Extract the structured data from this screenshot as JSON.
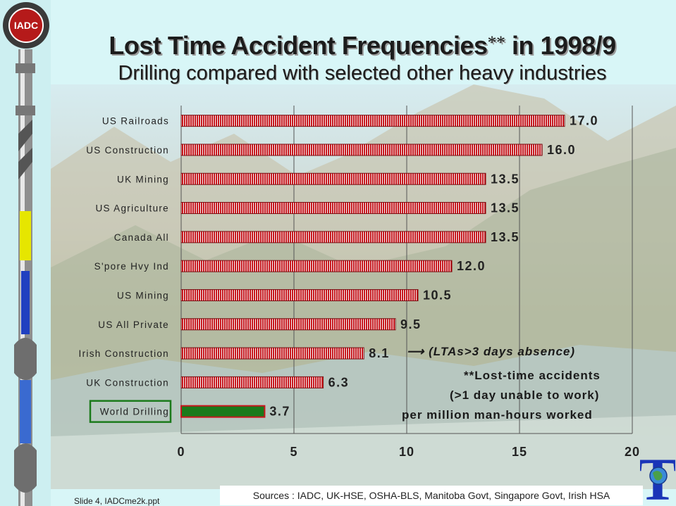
{
  "slide": {
    "title": "Lost Time Accident Frequencies",
    "title_stars": "**",
    "title_suffix": " in 1998/9",
    "subtitle": "Drilling compared with selected other heavy industries",
    "logo_text": "IADC",
    "footer_left": "Slide 4, IADCme2k.ppt",
    "sources": "Sources : IADC, UK-HSE, OSHA-BLS, Manitoba Govt, Singapore Govt, Irish HSA",
    "corner_logo_letter": "T"
  },
  "notes": {
    "arrow_note": "(LTAs>3 days absence)",
    "footnote_line1": "**Lost-time accidents",
    "footnote_line2": "(>1 day unable to work)",
    "footnote_line3": "per million man-hours worked"
  },
  "colors": {
    "bar": "#c8161d",
    "bar_stripe": "#f2f2f2",
    "highlight_bar": "#1b7a1b",
    "highlight_border": "#1b7a1b"
  },
  "chart_data": {
    "type": "bar",
    "orientation": "horizontal",
    "title": "Lost Time Accident Frequencies** in 1998/9",
    "xlabel": "",
    "ylabel": "",
    "xlim": [
      0,
      20
    ],
    "xticks": [
      0,
      5,
      10,
      15,
      20
    ],
    "xtick_labels": [
      "0",
      "5",
      "10",
      "15",
      "20"
    ],
    "categories": [
      "US Railroads",
      "US Construction",
      "UK Mining",
      "US Agriculture",
      "Canada All",
      "S'pore Hvy Ind",
      "US Mining",
      "US All Private",
      "Irish Construction",
      "UK Construction",
      "World Drilling"
    ],
    "values": [
      17.0,
      16.0,
      13.5,
      13.5,
      13.5,
      12.0,
      10.5,
      9.5,
      8.1,
      6.3,
      3.7
    ],
    "value_labels": [
      "17.0",
      "16.0",
      "13.5",
      "13.5",
      "13.5",
      "12.0",
      "10.5",
      "9.5",
      "8.1",
      "6.3",
      "3.7"
    ],
    "highlight": "World Drilling",
    "grid": true
  }
}
